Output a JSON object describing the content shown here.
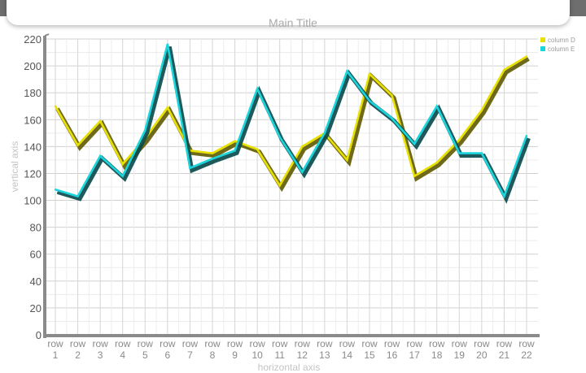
{
  "chart_data": {
    "type": "line",
    "title": "Main Title",
    "xlabel": "horizontal axis",
    "ylabel": "vertical axis",
    "ylim": [
      0,
      220
    ],
    "yticks": [
      0,
      20,
      40,
      60,
      80,
      100,
      120,
      140,
      160,
      180,
      200,
      220
    ],
    "categories": [
      [
        "row",
        "1"
      ],
      [
        "row",
        "2"
      ],
      [
        "row",
        "3"
      ],
      [
        "row",
        "4"
      ],
      [
        "row",
        "5"
      ],
      [
        "row",
        "6"
      ],
      [
        "row",
        "7"
      ],
      [
        "row",
        "8"
      ],
      [
        "row",
        "9"
      ],
      [
        "row",
        "10"
      ],
      [
        "row",
        "11"
      ],
      [
        "row",
        "12"
      ],
      [
        "row",
        "13"
      ],
      [
        "row",
        "14"
      ],
      [
        "row",
        "15"
      ],
      [
        "row",
        "16"
      ],
      [
        "row",
        "17"
      ],
      [
        "row",
        "18"
      ],
      [
        "row",
        "19"
      ],
      [
        "row",
        "20"
      ],
      [
        "row",
        "21"
      ],
      [
        "row",
        "22"
      ]
    ],
    "series": [
      {
        "name": "column D",
        "color": "#e8e000",
        "values": [
          170,
          141,
          159,
          127,
          146,
          169,
          137,
          135,
          144,
          138,
          111,
          140,
          150,
          130,
          194,
          178,
          118,
          128,
          145,
          167,
          197,
          207
        ]
      },
      {
        "name": "column E",
        "color": "#1ad6dc",
        "values": [
          108,
          103,
          133,
          118,
          152,
          216,
          124,
          131,
          137,
          183,
          147,
          121,
          150,
          196,
          174,
          161,
          142,
          170,
          135,
          135,
          103,
          148
        ]
      }
    ],
    "grid": true,
    "legend": "top-right"
  }
}
